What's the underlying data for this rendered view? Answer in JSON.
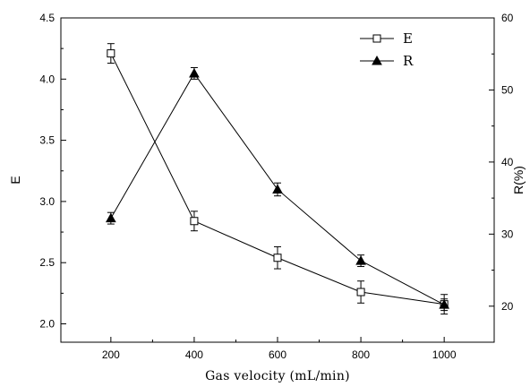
{
  "chart_data": {
    "type": "line",
    "xlabel": "Gas velocity (mL/min)",
    "ylabel_left": "E",
    "ylabel_right": "R(%)",
    "x": [
      200,
      400,
      600,
      800,
      1000
    ],
    "xticks": [
      200,
      400,
      600,
      800,
      1000
    ],
    "xlim": [
      80,
      1120
    ],
    "ylim_left": [
      1.85,
      4.5
    ],
    "ylim_right": [
      15,
      60
    ],
    "yticks_left": [
      "2.0",
      "2.5",
      "3.0",
      "3.5",
      "4.0",
      "4.5"
    ],
    "yticks_right": [
      "20",
      "30",
      "40",
      "50",
      "60"
    ],
    "grid": false,
    "legend_position": "top-right",
    "series": [
      {
        "name": "E",
        "axis": "left",
        "marker": "open-square",
        "values": [
          4.21,
          2.84,
          2.54,
          2.26,
          2.16
        ],
        "errors": [
          0.08,
          0.08,
          0.09,
          0.09,
          0.08
        ]
      },
      {
        "name": "R",
        "axis": "right",
        "marker": "filled-triangle",
        "values": [
          32.2,
          52.3,
          36.2,
          26.3,
          20.2
        ],
        "errors": [
          0.8,
          0.8,
          0.9,
          0.8,
          0.8
        ]
      }
    ]
  }
}
